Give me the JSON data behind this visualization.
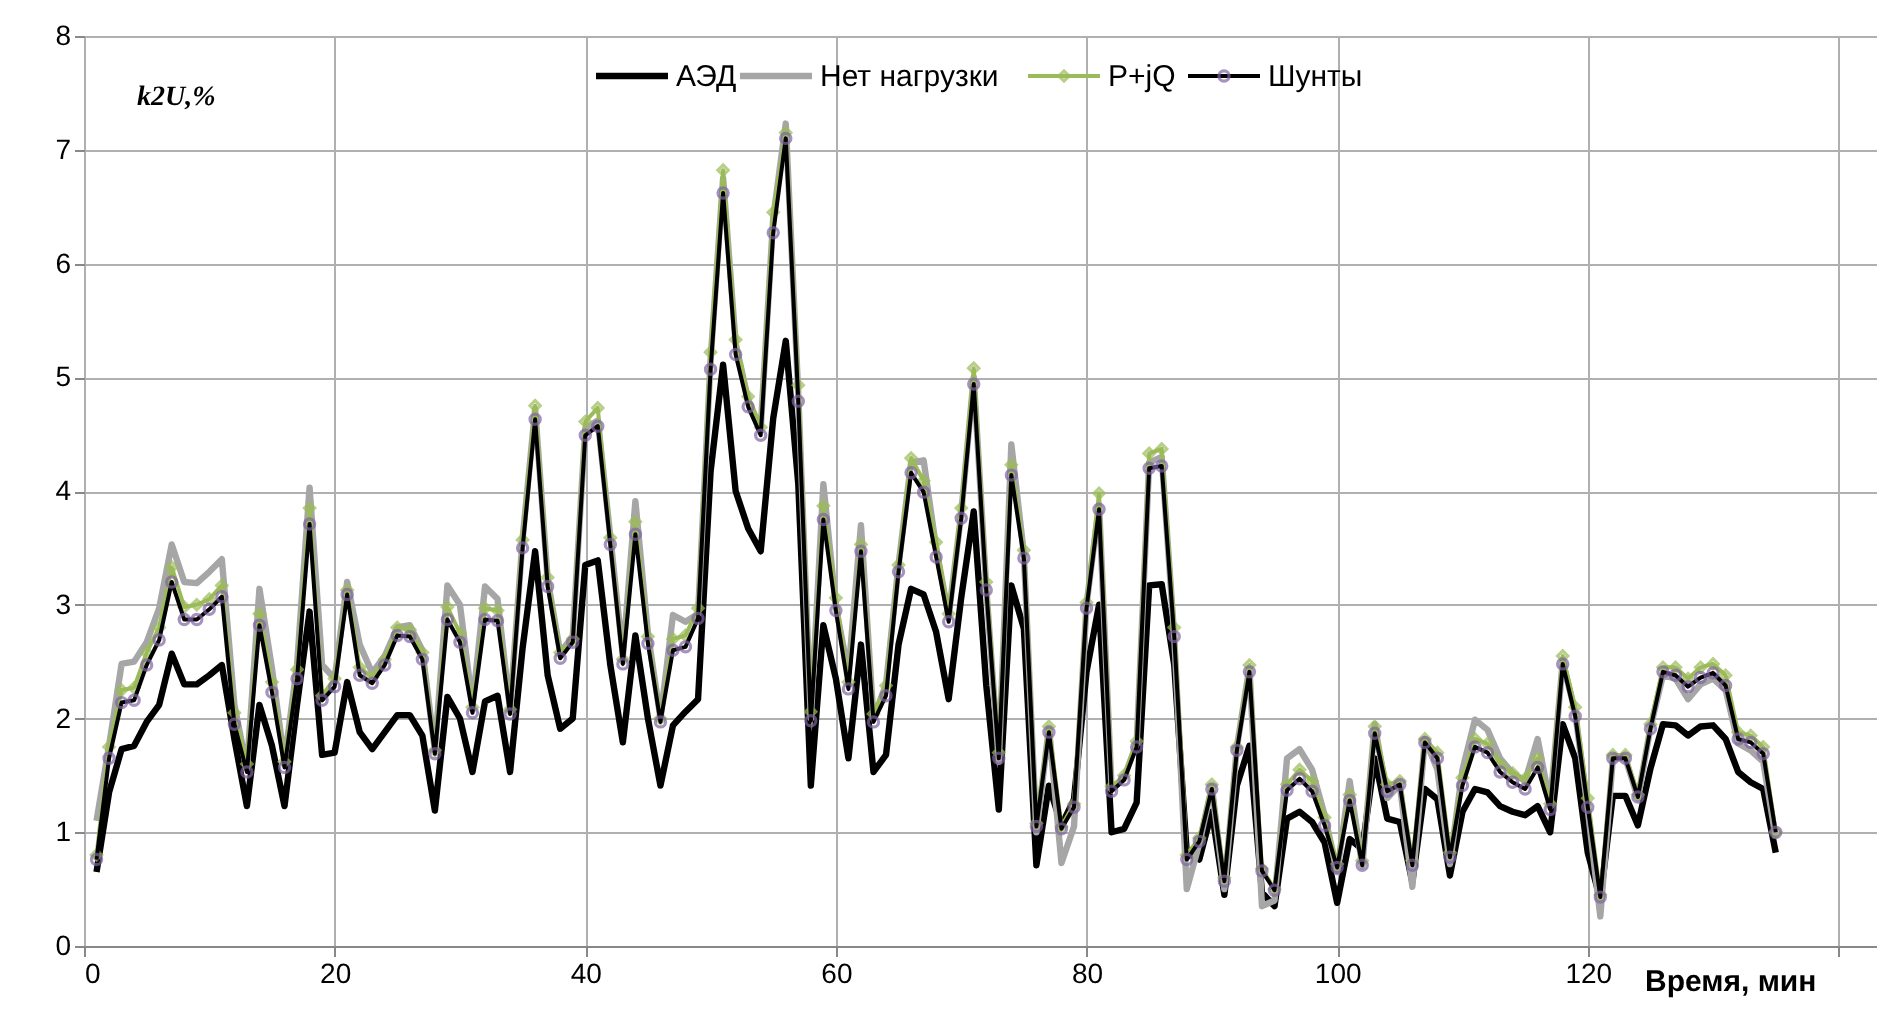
{
  "chart_data": {
    "type": "line",
    "ylabel": "k2U,%",
    "xlabel": "Время, мин",
    "x": [
      1,
      2,
      3,
      4,
      5,
      6,
      7,
      8,
      9,
      10,
      11,
      12,
      13,
      14,
      15,
      16,
      17,
      18,
      19,
      20,
      21,
      22,
      23,
      24,
      25,
      26,
      27,
      28,
      29,
      30,
      31,
      32,
      33,
      34,
      35,
      36,
      37,
      38,
      39,
      40,
      41,
      42,
      43,
      44,
      45,
      46,
      47,
      48,
      49,
      50,
      51,
      52,
      53,
      54,
      55,
      56,
      57,
      58,
      59,
      60,
      61,
      62,
      63,
      64,
      65,
      66,
      67,
      68,
      69,
      70,
      71,
      72,
      73,
      74,
      75,
      76,
      77,
      78,
      79,
      80,
      81,
      82,
      83,
      84,
      85,
      86,
      87,
      88,
      89,
      90,
      91,
      92,
      93,
      94,
      95,
      96,
      97,
      98,
      99,
      100,
      101,
      102,
      103,
      104,
      105,
      106,
      107,
      108,
      109,
      110,
      111,
      112,
      113,
      114,
      115,
      116,
      117,
      118,
      119,
      120,
      121,
      122,
      123,
      124,
      125,
      126,
      127,
      128,
      129,
      130,
      131,
      132,
      133,
      134,
      135
    ],
    "xlim": [
      0,
      143
    ],
    "xticks": [
      0,
      20,
      40,
      60,
      80,
      100,
      120,
      {
        "value": 140,
        "label": null
      }
    ],
    "ylim": [
      0,
      8
    ],
    "yticks": [
      0,
      1,
      2,
      3,
      4,
      5,
      6,
      7,
      8
    ],
    "grid": true,
    "legend": "top",
    "series": [
      {
        "name": "АЭД",
        "color": "#000000",
        "values": [
          0.65,
          1.35,
          1.73,
          1.76,
          1.97,
          2.12,
          2.57,
          2.3,
          2.3,
          2.38,
          2.47,
          1.82,
          1.23,
          2.12,
          1.76,
          1.23,
          2.12,
          2.94,
          1.68,
          1.7,
          2.32,
          1.88,
          1.73,
          1.88,
          2.03,
          2.03,
          1.85,
          1.19,
          2.19,
          2.0,
          1.53,
          2.15,
          2.2,
          1.53,
          2.62,
          3.47,
          2.38,
          1.91,
          2.0,
          3.35,
          3.39,
          2.47,
          1.79,
          2.73,
          2.0,
          1.41,
          1.94,
          2.06,
          2.17,
          4.17,
          5.11,
          4.0,
          3.67,
          3.47,
          4.64,
          5.32,
          4.06,
          1.41,
          2.82,
          2.35,
          1.65,
          2.65,
          1.53,
          1.68,
          2.65,
          3.14,
          3.09,
          2.76,
          2.17,
          3.06,
          3.82,
          2.29,
          1.2,
          3.17,
          2.79,
          0.71,
          1.41,
          1.06,
          1.29,
          2.41,
          3.0,
          1.0,
          1.03,
          1.26,
          3.17,
          3.18,
          2.47,
          0.82,
          0.76,
          1.18,
          0.45,
          1.41,
          1.76,
          0.47,
          0.35,
          1.12,
          1.18,
          1.09,
          0.91,
          0.38,
          0.94,
          0.85,
          1.65,
          1.12,
          1.09,
          0.56,
          1.38,
          1.29,
          0.62,
          1.18,
          1.38,
          1.35,
          1.23,
          1.18,
          1.15,
          1.23,
          1.0,
          1.95,
          1.65,
          0.82,
          0.41,
          1.32,
          1.32,
          1.06,
          1.56,
          1.95,
          1.94,
          1.85,
          1.93,
          1.94,
          1.82,
          1.53,
          1.44,
          1.38,
          0.82
        ]
      },
      {
        "name": "Нет нагрузки",
        "color": "#a6a6a6",
        "values": [
          1.1,
          1.76,
          2.48,
          2.5,
          2.67,
          2.97,
          3.53,
          3.2,
          3.19,
          3.29,
          3.4,
          2.12,
          1.56,
          3.14,
          2.44,
          1.62,
          2.47,
          4.03,
          2.47,
          2.35,
          3.2,
          2.65,
          2.4,
          2.55,
          2.8,
          2.82,
          2.6,
          1.72,
          3.17,
          3.0,
          2.12,
          3.16,
          3.05,
          2.08,
          3.58,
          4.72,
          3.22,
          2.58,
          2.72,
          4.55,
          4.62,
          3.6,
          2.55,
          3.91,
          2.75,
          2.0,
          2.91,
          2.85,
          2.92,
          5.15,
          6.75,
          5.3,
          4.8,
          4.55,
          6.4,
          7.23,
          4.85,
          2.0,
          4.06,
          2.98,
          2.4,
          3.7,
          2.0,
          2.3,
          3.35,
          4.25,
          4.27,
          3.5,
          2.9,
          3.8,
          5.0,
          3.15,
          1.62,
          4.41,
          3.45,
          1.0,
          1.92,
          0.73,
          1.05,
          3.0,
          3.88,
          1.38,
          1.48,
          1.78,
          4.25,
          4.3,
          2.72,
          0.5,
          0.9,
          1.4,
          0.5,
          1.75,
          2.45,
          0.35,
          0.4,
          1.65,
          1.73,
          1.55,
          1.15,
          0.65,
          1.45,
          0.7,
          1.95,
          1.3,
          1.42,
          0.52,
          1.82,
          1.55,
          0.72,
          1.55,
          1.99,
          1.9,
          1.65,
          1.52,
          1.45,
          1.82,
          1.25,
          2.5,
          2.05,
          1.2,
          0.26,
          1.65,
          1.65,
          1.3,
          1.92,
          2.38,
          2.35,
          2.17,
          2.3,
          2.35,
          2.25,
          1.78,
          1.72,
          1.62,
          0.95
        ]
      },
      {
        "name": "P+jQ",
        "color": "#9bbb59",
        "marker": "diamond",
        "values": [
          0.8,
          1.75,
          2.25,
          2.27,
          2.58,
          2.8,
          3.33,
          2.98,
          3.0,
          3.05,
          3.17,
          2.05,
          1.6,
          2.92,
          2.32,
          1.62,
          2.43,
          3.85,
          2.2,
          2.35,
          3.13,
          2.45,
          2.36,
          2.52,
          2.8,
          2.78,
          2.58,
          1.72,
          2.98,
          2.75,
          2.1,
          2.97,
          2.95,
          2.08,
          3.57,
          4.75,
          3.24,
          2.58,
          2.7,
          4.61,
          4.73,
          3.59,
          2.52,
          3.73,
          2.72,
          2.0,
          2.7,
          2.73,
          2.97,
          5.22,
          6.82,
          5.33,
          4.83,
          4.56,
          6.45,
          7.15,
          4.93,
          2.06,
          3.87,
          3.06,
          2.32,
          3.53,
          2.04,
          2.29,
          3.35,
          4.29,
          4.09,
          3.55,
          2.92,
          3.85,
          5.08,
          3.2,
          1.7,
          4.23,
          3.48,
          1.08,
          1.93,
          1.05,
          1.25,
          3.02,
          3.98,
          1.4,
          1.5,
          1.8,
          4.33,
          4.37,
          2.8,
          0.8,
          0.95,
          1.42,
          0.6,
          1.75,
          2.47,
          0.68,
          0.5,
          1.42,
          1.55,
          1.45,
          1.13,
          0.72,
          1.33,
          0.75,
          1.93,
          1.42,
          1.45,
          0.75,
          1.82,
          1.7,
          0.82,
          1.48,
          1.82,
          1.78,
          1.6,
          1.52,
          1.47,
          1.65,
          1.25,
          2.55,
          2.1,
          1.3,
          0.45,
          1.68,
          1.68,
          1.33,
          1.95,
          2.45,
          2.45,
          2.35,
          2.45,
          2.48,
          2.38,
          1.88,
          1.85,
          1.75,
          1.0
        ]
      },
      {
        "name": "Шунты",
        "color": "#8064a2",
        "marker": "circle",
        "values": [
          0.76,
          1.65,
          2.14,
          2.16,
          2.47,
          2.69,
          3.2,
          2.87,
          2.87,
          2.96,
          3.07,
          1.95,
          1.53,
          2.82,
          2.23,
          1.57,
          2.35,
          3.71,
          2.16,
          2.28,
          3.09,
          2.38,
          2.31,
          2.47,
          2.73,
          2.72,
          2.52,
          1.69,
          2.87,
          2.67,
          2.05,
          2.87,
          2.86,
          2.04,
          3.5,
          4.63,
          3.16,
          2.53,
          2.67,
          4.49,
          4.57,
          3.53,
          2.48,
          3.62,
          2.66,
          1.97,
          2.6,
          2.63,
          2.88,
          5.07,
          6.62,
          5.2,
          4.74,
          4.49,
          6.27,
          7.1,
          4.79,
          1.98,
          3.75,
          2.95,
          2.26,
          3.47,
          1.97,
          2.2,
          3.29,
          4.16,
          3.99,
          3.42,
          2.85,
          3.76,
          4.94,
          3.13,
          1.65,
          4.14,
          3.41,
          1.05,
          1.88,
          1.03,
          1.22,
          2.97,
          3.84,
          1.36,
          1.46,
          1.75,
          4.2,
          4.22,
          2.72,
          0.76,
          0.92,
          1.38,
          0.57,
          1.72,
          2.41,
          0.66,
          0.49,
          1.37,
          1.47,
          1.36,
          1.06,
          0.69,
          1.28,
          0.71,
          1.87,
          1.36,
          1.42,
          0.71,
          1.79,
          1.65,
          0.78,
          1.41,
          1.75,
          1.7,
          1.53,
          1.44,
          1.38,
          1.57,
          1.2,
          2.48,
          2.02,
          1.22,
          0.43,
          1.65,
          1.65,
          1.31,
          1.91,
          2.41,
          2.38,
          2.28,
          2.36,
          2.4,
          2.29,
          1.82,
          1.79,
          1.69,
          1.0
        ]
      }
    ]
  }
}
